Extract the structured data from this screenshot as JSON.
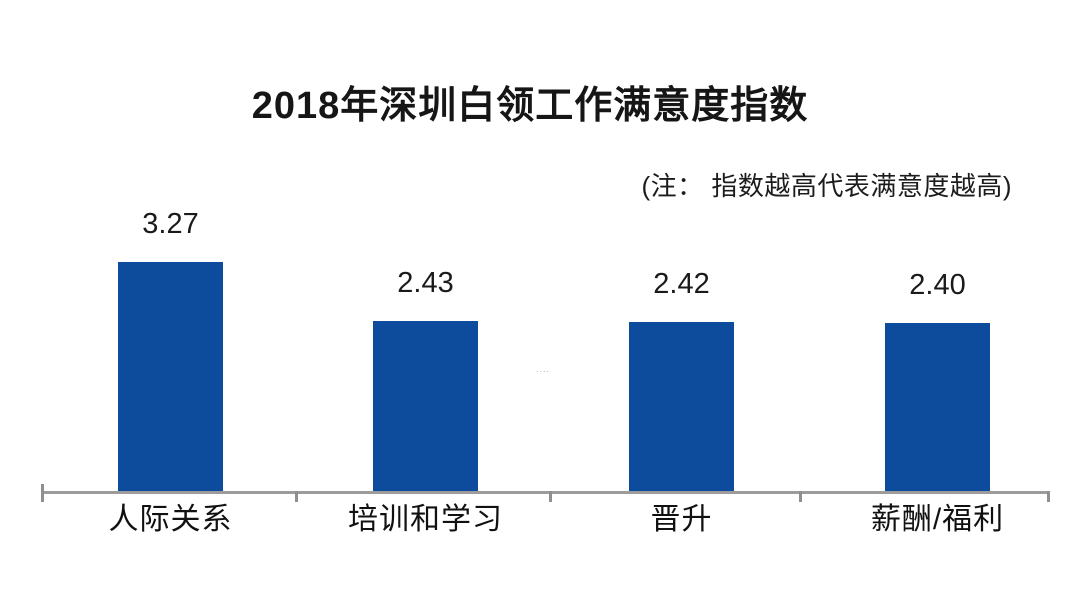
{
  "title": "2018年深圳白领工作满意度指数",
  "note": "(注： 指数越高代表满意度越高)",
  "artifact": "....",
  "colors": {
    "bar": "#0d4b9c",
    "axis": "#9c9c9c",
    "tick": "#8f8f8f",
    "text": "#1a1a1a"
  },
  "chart_data": {
    "type": "bar",
    "title": "2018年深圳白领工作满意度指数",
    "subtitle": "(注： 指数越高代表满意度越高)",
    "categories": [
      "人际关系",
      "培训和学习",
      "晋升",
      "薪酬/福利"
    ],
    "values": [
      3.27,
      2.43,
      2.42,
      2.4
    ],
    "value_labels": [
      "3.27",
      "2.43",
      "2.42",
      "2.40"
    ],
    "xlabel": "",
    "ylabel": "",
    "ylim": [
      0,
      3.5
    ],
    "grid": false,
    "legend": "none",
    "bar_color": "#0d4b9c",
    "axis_color": "#9c9c9c"
  }
}
